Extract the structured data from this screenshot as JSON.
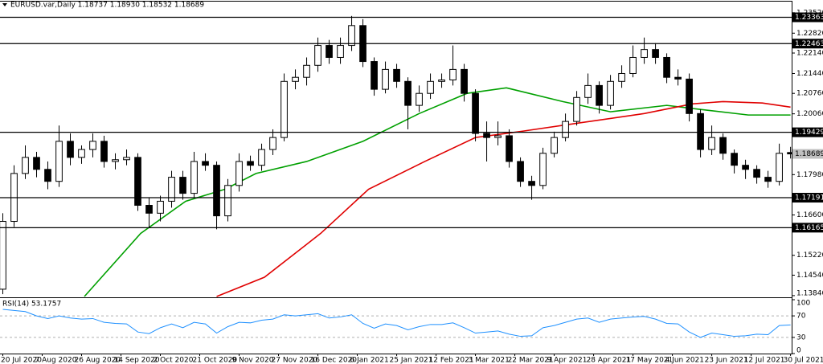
{
  "chart_data": [
    {
      "type": "candlestick",
      "title": "EURUSD.var,Daily  1.18737 1.18930 1.18532 1.18689",
      "x": [
        0,
        4,
        8,
        12,
        16,
        20,
        24,
        28,
        32,
        36,
        40,
        44,
        48,
        52,
        56,
        60,
        64,
        68,
        72,
        76,
        80,
        84,
        88,
        92,
        96,
        100,
        104,
        108,
        112,
        116,
        120,
        124,
        128,
        132,
        136,
        140,
        144,
        148,
        152,
        156,
        160,
        164,
        168,
        172,
        176,
        180,
        184,
        188,
        192,
        196,
        200,
        204,
        208,
        212,
        216,
        220,
        224,
        228,
        232,
        236,
        240,
        244,
        248,
        252,
        256,
        260,
        264,
        268,
        272,
        276,
        280
      ],
      "open": [
        1.1406,
        1.1638,
        1.1802,
        1.1857,
        1.1816,
        1.1775,
        1.1912,
        1.1857,
        1.1884,
        1.1912,
        1.1843,
        1.1849,
        1.1857,
        1.1693,
        1.1666,
        1.1707,
        1.1789,
        1.1734,
        1.1843,
        1.183,
        1.1657,
        1.1761,
        1.1843,
        1.183,
        1.1884,
        1.1925,
        1.2117,
        1.2131,
        1.2172,
        1.224,
        1.2199,
        1.224,
        1.2308,
        1.2185,
        1.209,
        1.2158,
        1.2117,
        1.2035,
        1.2076,
        1.2117,
        1.2122,
        1.2158,
        1.2076,
        1.1939,
        1.1925,
        1.1931,
        1.1843,
        1.1775,
        1.1761,
        1.1871,
        1.1925,
        1.198,
        1.2062,
        1.2103,
        1.2035,
        1.2117,
        1.2144,
        1.2199,
        1.2226,
        1.2199,
        1.2131,
        1.2125,
        1.2007,
        1.1884,
        1.1925,
        1.1871,
        1.183,
        1.1816,
        1.1789,
        1.1775,
        1.18737
      ],
      "high": [
        1.1666,
        1.183,
        1.1898,
        1.1876,
        1.1843,
        1.1966,
        1.1939,
        1.1898,
        1.1939,
        1.1931,
        1.1871,
        1.1884,
        1.1871,
        1.172,
        1.1726,
        1.1811,
        1.1811,
        1.1876,
        1.1871,
        1.1843,
        1.1783,
        1.1871,
        1.1863,
        1.1904,
        1.1953,
        1.2144,
        1.2158,
        1.2199,
        1.2267,
        1.2259,
        1.2267,
        1.2341,
        1.233,
        1.2199,
        1.2185,
        1.2177,
        1.2131,
        1.2103,
        1.2144,
        1.2144,
        1.224,
        1.2177,
        1.209,
        1.198,
        1.198,
        1.1953,
        1.1857,
        1.1794,
        1.189,
        1.1945,
        1.2007,
        1.2084,
        1.2144,
        1.2117,
        1.2139,
        1.2172,
        1.224,
        1.2267,
        1.2248,
        1.2213,
        1.2158,
        1.2144,
        1.2021,
        1.1966,
        1.1939,
        1.1884,
        1.1849,
        1.183,
        1.1811,
        1.1904,
        1.1893
      ],
      "low": [
        1.1389,
        1.1619,
        1.1783,
        1.1789,
        1.1748,
        1.1756,
        1.183,
        1.1835,
        1.1857,
        1.1822,
        1.1816,
        1.183,
        1.1674,
        1.1616,
        1.1638,
        1.1685,
        1.1712,
        1.1718,
        1.1811,
        1.1611,
        1.1638,
        1.174,
        1.1811,
        1.1811,
        1.1865,
        1.1912,
        1.209,
        1.2103,
        1.215,
        1.2177,
        1.2177,
        1.2221,
        1.2166,
        1.2068,
        1.2076,
        1.2095,
        1.1953,
        1.2013,
        1.2057,
        1.2095,
        1.2103,
        1.2048,
        1.1912,
        1.1843,
        1.1898,
        1.1822,
        1.1756,
        1.1712,
        1.1748,
        1.1857,
        1.1912,
        1.1966,
        1.204,
        1.2007,
        1.2021,
        1.2095,
        1.2131,
        1.2177,
        1.2177,
        1.2111,
        1.2103,
        1.198,
        1.1857,
        1.1865,
        1.1849,
        1.1802,
        1.1783,
        1.1767,
        1.1753,
        1.1761,
        1.18532
      ],
      "close": [
        1.1638,
        1.1802,
        1.1857,
        1.1816,
        1.1775,
        1.1912,
        1.1857,
        1.1884,
        1.1912,
        1.1843,
        1.1849,
        1.1857,
        1.1693,
        1.1666,
        1.1707,
        1.1789,
        1.1734,
        1.1843,
        1.183,
        1.1657,
        1.1761,
        1.1843,
        1.183,
        1.1884,
        1.1925,
        1.2117,
        1.2131,
        1.2172,
        1.224,
        1.2199,
        1.224,
        1.2308,
        1.2185,
        1.209,
        1.2158,
        1.2117,
        1.2035,
        1.2076,
        1.2117,
        1.2122,
        1.2158,
        1.2076,
        1.1939,
        1.1925,
        1.1931,
        1.1843,
        1.1775,
        1.1761,
        1.1871,
        1.1925,
        1.198,
        1.2062,
        1.2103,
        1.2035,
        1.2117,
        1.2144,
        1.2199,
        1.2226,
        1.2199,
        1.2131,
        1.2125,
        1.2007,
        1.1884,
        1.1925,
        1.1871,
        1.183,
        1.1816,
        1.1789,
        1.1775,
        1.1871,
        1.18689
      ],
      "bull_color": "#ffffff",
      "bear_color": "#000000",
      "outline_color": "#000000",
      "series": [
        {
          "color": "#00a000",
          "x": [
            29,
            49,
            65,
            79,
            90,
            108,
            128,
            148,
            165,
            179,
            199,
            216,
            236,
            248,
            265,
            280
          ],
          "values": [
            1.1381,
            1.1597,
            1.1707,
            1.1748,
            1.1802,
            1.1843,
            1.1912,
            1.2007,
            1.2076,
            1.2095,
            1.2048,
            1.2013,
            1.2035,
            1.2021,
            1.2002,
            1.2002
          ]
        },
        {
          "color": "#e00000",
          "x": [
            76,
            93,
            113,
            130,
            150,
            168,
            185,
            205,
            228,
            245,
            256,
            270,
            280
          ],
          "values": [
            1.1381,
            1.1447,
            1.1597,
            1.1748,
            1.1843,
            1.1925,
            1.1947,
            1.1975,
            1.2007,
            1.204,
            1.2048,
            1.2043,
            1.2029
          ]
        }
      ],
      "xlim": [
        -1,
        280.4
      ],
      "ylim": [
        1.1381,
        1.239
      ],
      "yticks": [
        {
          "value": 1.2352,
          "label": "1.23520"
        },
        {
          "value": 1.2282,
          "label": "1.22820"
        },
        {
          "value": 1.2214,
          "label": "1.22140"
        },
        {
          "value": 1.2144,
          "label": "1.21440"
        },
        {
          "value": 1.2076,
          "label": "1.20760"
        },
        {
          "value": 1.2006,
          "label": "1.20060"
        },
        {
          "value": 1.1798,
          "label": "1.17980"
        },
        {
          "value": 1.166,
          "label": "1.16600"
        },
        {
          "value": 1.1522,
          "label": "1.15220"
        },
        {
          "value": 1.1454,
          "label": "1.14540"
        },
        {
          "value": 1.1384,
          "label": "1.13840"
        }
      ],
      "levels": [
        {
          "value": 1.23363,
          "label": "1.23363"
        },
        {
          "value": 1.22463,
          "label": "1.22463"
        },
        {
          "value": 1.19429,
          "label": "1.19429"
        },
        {
          "value": 1.17191,
          "label": "1.17191"
        },
        {
          "value": 1.16165,
          "label": "1.16165"
        }
      ],
      "level_color": "#000000",
      "xticks": [
        {
          "value": 0,
          "label": "20 Jul 2020"
        },
        {
          "value": 14,
          "label": "7 Aug 2020"
        },
        {
          "value": 28,
          "label": "26 Aug 2020"
        },
        {
          "value": 42,
          "label": "14 Sep 2020"
        },
        {
          "value": 56,
          "label": "2 Oct 2020"
        },
        {
          "value": 70,
          "label": "21 Oct 2020"
        },
        {
          "value": 84,
          "label": "9 Nov 2020"
        },
        {
          "value": 98,
          "label": "27 Nov 2020"
        },
        {
          "value": 112,
          "label": "16 Dec 2020"
        },
        {
          "value": 126,
          "label": "6 Jan 2021"
        },
        {
          "value": 140,
          "label": "25 Jan 2021"
        },
        {
          "value": 154,
          "label": "12 Feb 2021"
        },
        {
          "value": 168,
          "label": "3 Mar 2021"
        },
        {
          "value": 182,
          "label": "22 Mar 2021"
        },
        {
          "value": 196,
          "label": "9 Apr 2021"
        },
        {
          "value": 210,
          "label": "28 Apr 2021"
        },
        {
          "value": 224,
          "label": "17 May 2021"
        },
        {
          "value": 238,
          "label": "4 Jun 2021"
        },
        {
          "value": 252,
          "label": "23 Jun 2021"
        },
        {
          "value": 266,
          "label": "12 Jul 2021"
        },
        {
          "value": 280,
          "label": "30 Jul 2021"
        }
      ]
    },
    {
      "type": "line",
      "title": "RSI(14) 53.1757",
      "x": [
        0,
        4,
        8,
        12,
        16,
        20,
        24,
        28,
        32,
        36,
        40,
        44,
        48,
        52,
        56,
        60,
        64,
        68,
        72,
        76,
        80,
        84,
        88,
        92,
        96,
        100,
        104,
        108,
        112,
        116,
        120,
        124,
        128,
        132,
        136,
        140,
        144,
        148,
        152,
        156,
        160,
        164,
        168,
        172,
        176,
        180,
        184,
        188,
        192,
        196,
        200,
        204,
        208,
        212,
        216,
        220,
        224,
        228,
        232,
        236,
        240,
        244,
        248,
        252,
        256,
        260,
        264,
        268,
        272,
        276,
        280
      ],
      "values": [
        82,
        80,
        78,
        70,
        65,
        70,
        66,
        64,
        65,
        58,
        56,
        55,
        40,
        37,
        48,
        55,
        48,
        58,
        55,
        38,
        50,
        58,
        57,
        62,
        64,
        72,
        70,
        72,
        74,
        66,
        68,
        72,
        56,
        47,
        55,
        52,
        44,
        50,
        54,
        54,
        57,
        48,
        38,
        40,
        42,
        36,
        32,
        33,
        48,
        52,
        58,
        64,
        66,
        58,
        64,
        66,
        68,
        69,
        64,
        56,
        55,
        40,
        30,
        38,
        35,
        32,
        33,
        36,
        35,
        52,
        53.1757
      ],
      "color": "#1e90ff",
      "xlim": [
        -1,
        280.4
      ],
      "ylim": [
        0,
        100
      ],
      "yticks": [
        0,
        30,
        70,
        100
      ],
      "levels": [
        30,
        70
      ],
      "level_color": "#b0b0b0"
    }
  ]
}
